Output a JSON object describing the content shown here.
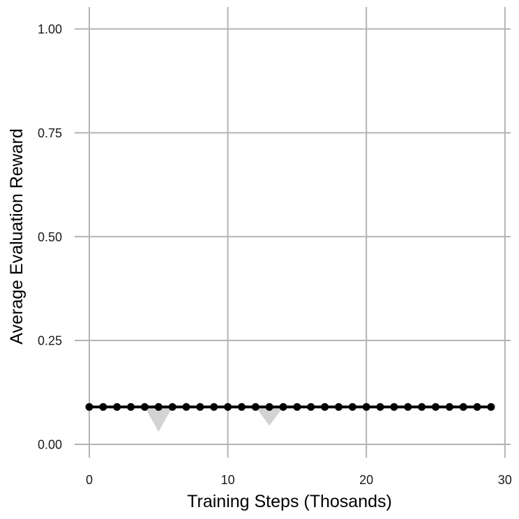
{
  "chart_data": {
    "type": "line",
    "xlabel": "Training Steps (Thosands)",
    "ylabel": "Average Evaluation Reward",
    "xlim": [
      -1,
      30.3
    ],
    "ylim": [
      -0.04,
      1.05
    ],
    "x_ticks": [
      0,
      10,
      20,
      30
    ],
    "y_ticks": [
      0.0,
      0.25,
      0.5,
      0.75,
      1.0
    ],
    "x_tick_labels": [
      "0",
      "10",
      "20",
      "30"
    ],
    "y_tick_labels": [
      "0.00",
      "0.25",
      "0.50",
      "0.75",
      "1.00"
    ],
    "grid": true,
    "legend": "none",
    "series": [
      {
        "color": "#000000",
        "x": [
          0,
          1,
          2,
          3,
          4,
          5,
          6,
          7,
          8,
          9,
          10,
          11,
          12,
          13,
          14,
          15,
          16,
          17,
          18,
          19,
          20,
          21,
          22,
          23,
          24,
          25,
          26,
          27,
          28,
          29
        ],
        "y": [
          0.09,
          0.09,
          0.09,
          0.09,
          0.09,
          0.09,
          0.09,
          0.09,
          0.09,
          0.09,
          0.09,
          0.09,
          0.09,
          0.09,
          0.09,
          0.09,
          0.09,
          0.09,
          0.09,
          0.09,
          0.09,
          0.09,
          0.09,
          0.09,
          0.09,
          0.09,
          0.09,
          0.09,
          0.09,
          0.09
        ],
        "band_low": [
          0.09,
          0.09,
          0.09,
          0.09,
          0.09,
          0.03,
          0.09,
          0.09,
          0.09,
          0.09,
          0.09,
          0.09,
          0.09,
          0.045,
          0.09,
          0.09,
          0.09,
          0.09,
          0.09,
          0.09,
          0.09,
          0.09,
          0.09,
          0.09,
          0.09,
          0.09,
          0.09,
          0.09,
          0.09,
          0.09
        ],
        "band_high": [
          0.09,
          0.09,
          0.09,
          0.09,
          0.09,
          0.09,
          0.09,
          0.09,
          0.09,
          0.09,
          0.09,
          0.09,
          0.09,
          0.09,
          0.09,
          0.09,
          0.09,
          0.09,
          0.09,
          0.09,
          0.09,
          0.09,
          0.09,
          0.09,
          0.09,
          0.09,
          0.09,
          0.09,
          0.09,
          0.09
        ],
        "band_color": "#d3d3d3"
      }
    ]
  }
}
